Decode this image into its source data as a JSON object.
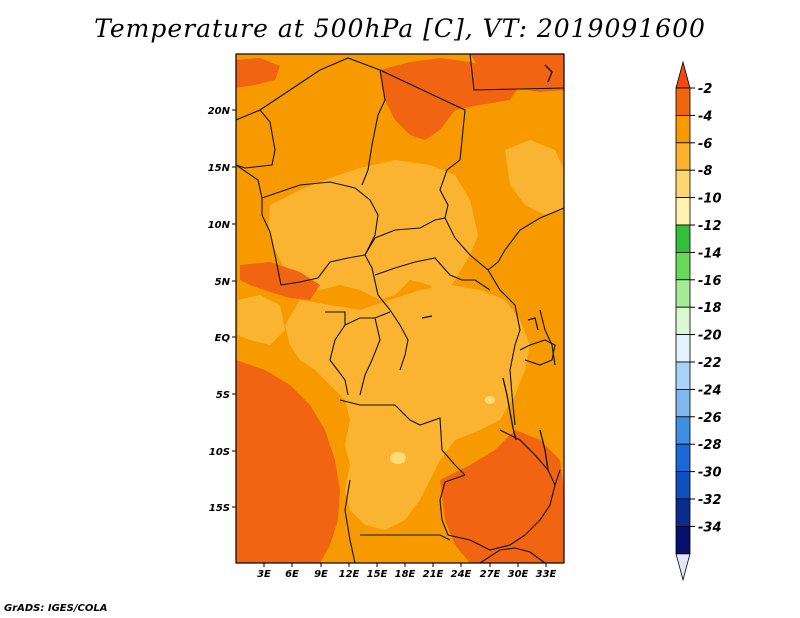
{
  "title": "Temperature at 500hPa [C], VT: 2019091600",
  "credit": "GrADS: IGES/COLA",
  "map": {
    "lat_labels": [
      "20N",
      "15N",
      "10N",
      "5N",
      "EQ",
      "5S",
      "10S",
      "15S"
    ],
    "lon_labels": [
      "3E",
      "6E",
      "9E",
      "12E",
      "15E",
      "18E",
      "21E",
      "24E",
      "27E",
      "30E",
      "33E"
    ]
  },
  "colorbar": {
    "labels": [
      "-2",
      "-4",
      "-6",
      "-8",
      "-10",
      "-12",
      "-14",
      "-16",
      "-18",
      "-20",
      "-22",
      "-24",
      "-26",
      "-28",
      "-30",
      "-32",
      "-34"
    ],
    "colors": [
      "#f04a10",
      "#f0660a",
      "#f79a00",
      "#fbb22e",
      "#fdd670",
      "#fff3ae",
      "#33bf3a",
      "#67d85a",
      "#a5eb98",
      "#daf8d2",
      "#e4f4ff",
      "#a8d3f6",
      "#7fb7ee",
      "#3e8fe3",
      "#1b68d8",
      "#0d4fbc",
      "#0a2c8f",
      "#06116b",
      "#e6e6fa"
    ]
  },
  "colors": {
    "darkorange": "#f06412",
    "orange": "#f79a00",
    "lightorange": "#fbb431",
    "yellow": "#fddb75"
  }
}
